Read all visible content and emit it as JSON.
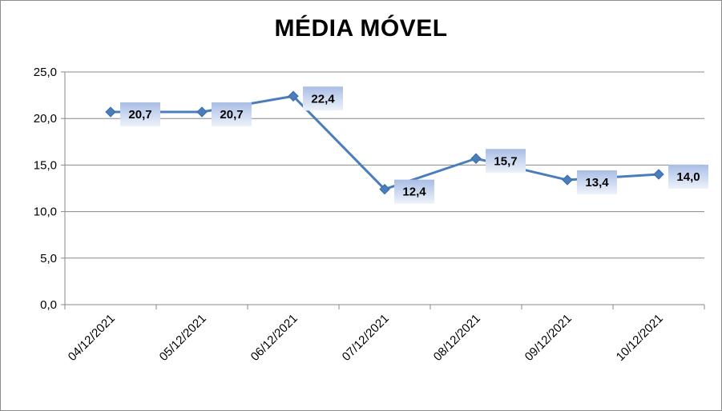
{
  "chart_data": {
    "type": "line",
    "title": "MÉDIA MÓVEL",
    "xlabel": "",
    "ylabel": "",
    "categories": [
      "04/12/2021",
      "05/12/2021",
      "06/12/2021",
      "07/12/2021",
      "08/12/2021",
      "09/12/2021",
      "10/12/2021"
    ],
    "series": [
      {
        "values": [
          20.7,
          20.7,
          22.4,
          12.4,
          15.7,
          13.4,
          14.0
        ],
        "labels": [
          "20,7",
          "20,7",
          "22,4",
          "12,4",
          "15,7",
          "13,4",
          "14,0"
        ],
        "color": "#4a7ebb"
      }
    ],
    "ylim": [
      0,
      25
    ],
    "yticks": [
      0,
      5,
      10,
      15,
      20,
      25
    ],
    "ytick_labels": [
      "0,0",
      "5,0",
      "10,0",
      "15,0",
      "20,0",
      "25,0"
    ],
    "grid": true,
    "legend": "none",
    "colors": {
      "line": "#4a7ebb",
      "marker": "#4a7ebb",
      "label_box_top": "#a9bde4",
      "label_box_bottom": "#eef3fb",
      "grid": "#888888"
    }
  }
}
